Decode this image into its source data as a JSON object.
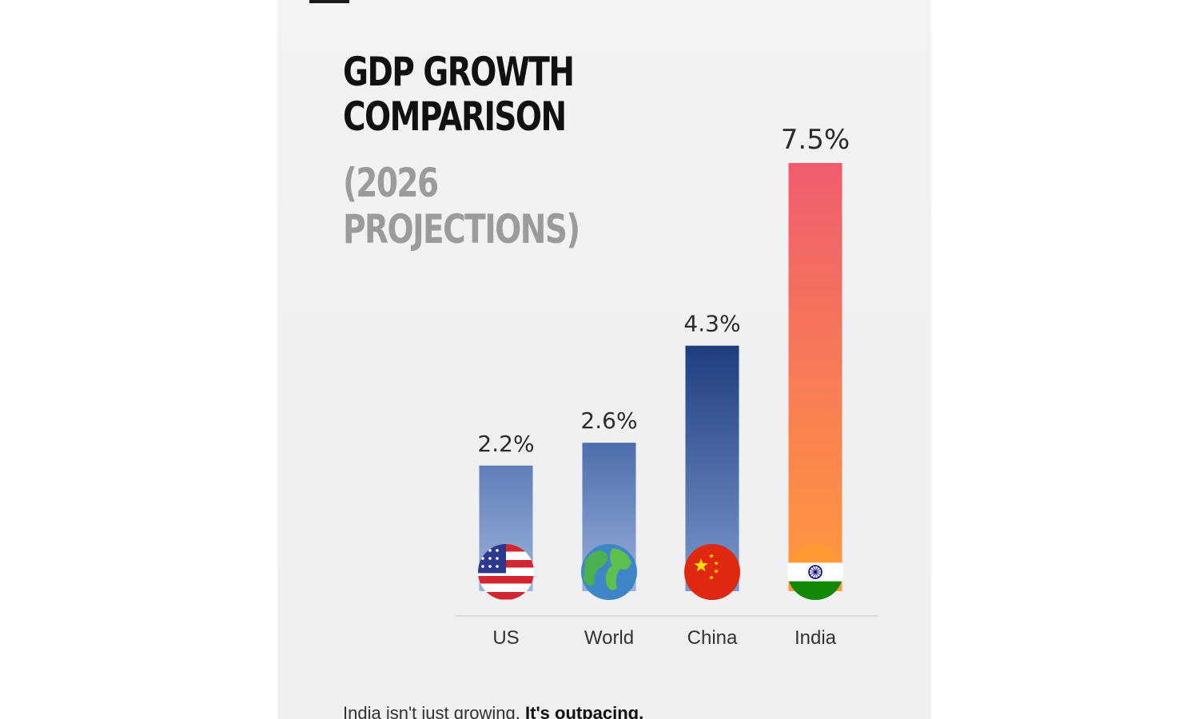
{
  "header": {
    "title_line1": "GDP GROWTH",
    "title_line2": "COMPARISON",
    "subtitle_line1": "(2026",
    "subtitle_line2": "PROJECTIONS)"
  },
  "footer": {
    "text": "India isn't just growing.",
    "emphasis": "It's outpacing."
  },
  "chart_data": {
    "type": "bar",
    "title": "GDP GROWTH COMPARISON (2026 PROJECTIONS)",
    "categories": [
      "US",
      "World",
      "China",
      "India"
    ],
    "values": [
      2.2,
      2.6,
      4.3,
      7.5
    ],
    "data_labels": [
      "2.2%",
      "2.6%",
      "4.3%",
      "7.5%"
    ],
    "icons": [
      "us-flag-icon",
      "globe-icon",
      "china-flag-icon",
      "india-flag-icon"
    ],
    "ylim": [
      0,
      7.5
    ],
    "grid": false,
    "legend": "none",
    "colors": {
      "US": [
        "#5f7fb8",
        "#9db3dc"
      ],
      "World": [
        "#4d6eac",
        "#98b0da"
      ],
      "China": [
        "#1f3e80",
        "#7a98cf"
      ],
      "India": [
        "#f05c6e",
        "#ff9a3c"
      ],
      "baseline": "#dcdcdf",
      "text": "#333333"
    }
  }
}
